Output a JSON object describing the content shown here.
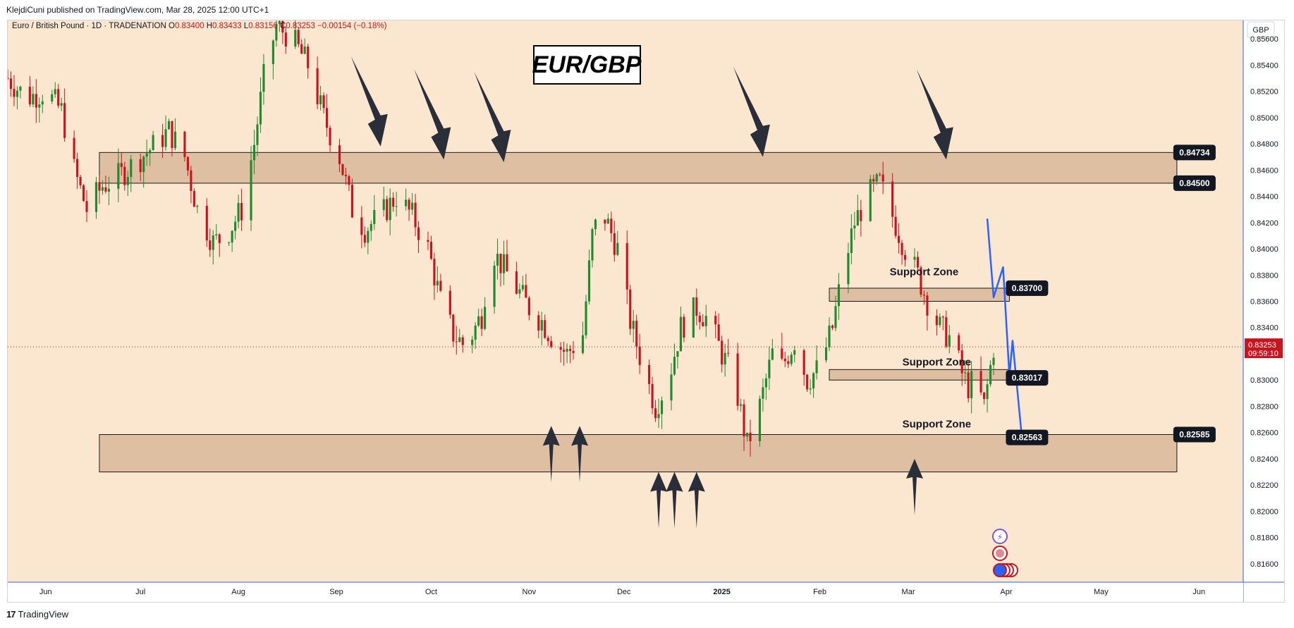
{
  "header": {
    "published": "KlejdiCuni published on TradingView.com, Mar 28, 2025 12:00 UTC+1"
  },
  "footer": {
    "brand": "TradingView",
    "logo_icon": "tradingview-logo-icon"
  },
  "colors": {
    "background": "#fbe6cf",
    "up": "#1f8a2e",
    "down": "#c9141f",
    "zone_fill": "#d8b799",
    "arrow": "#2a2e39",
    "projection": "#2962ff",
    "price_marker": "#c9141f"
  },
  "chart_data": {
    "type": "candlestick",
    "symbol_line": {
      "name": "Euro / British Pound · 1D · TRADENATION",
      "o_label": "O",
      "o": "0.83400",
      "h_label": "H",
      "h": "0.83433",
      "l_label": "L",
      "l": "0.83156",
      "c_label": "C",
      "c": "0.83253",
      "change": "−0.00154 (−0.18%)"
    },
    "title": "EUR/GBP",
    "currency": "GBP",
    "y_range": [
      0.8146,
      0.8574
    ],
    "y_ticks": [
      "0.85600",
      "0.85400",
      "0.85200",
      "0.85000",
      "0.84800",
      "0.84600",
      "0.84400",
      "0.84200",
      "0.84000",
      "0.83800",
      "0.83600",
      "0.83400",
      "0.83200",
      "0.83000",
      "0.82800",
      "0.82600",
      "0.82400",
      "0.82200",
      "0.82000",
      "0.81800",
      "0.81600"
    ],
    "x_range": [
      "2024-05-20",
      "2025-06-15"
    ],
    "x_ticks": [
      {
        "date": "2024-06-01",
        "label": "Jun"
      },
      {
        "date": "2024-07-01",
        "label": "Jul"
      },
      {
        "date": "2024-08-01",
        "label": "Aug"
      },
      {
        "date": "2024-09-01",
        "label": "Sep"
      },
      {
        "date": "2024-10-01",
        "label": "Oct"
      },
      {
        "date": "2024-11-01",
        "label": "Nov"
      },
      {
        "date": "2024-12-01",
        "label": "Dec"
      },
      {
        "date": "2025-01-01",
        "label": "2025"
      },
      {
        "date": "2025-02-01",
        "label": "Feb"
      },
      {
        "date": "2025-03-01",
        "label": "Mar"
      },
      {
        "date": "2025-04-01",
        "label": "Apr"
      },
      {
        "date": "2025-05-01",
        "label": "May"
      },
      {
        "date": "2025-06-01",
        "label": "Jun"
      }
    ],
    "current_price": {
      "value": 0.83253,
      "label": "0.83253",
      "countdown": "09:59:10"
    },
    "price_path": [
      [
        "2024-05-20",
        0.853
      ],
      [
        "2024-05-26",
        0.8515
      ],
      [
        "2024-06-01",
        0.852
      ],
      [
        "2024-06-06",
        0.8505
      ],
      [
        "2024-06-10",
        0.846
      ],
      [
        "2024-06-14",
        0.843
      ],
      [
        "2024-06-19",
        0.8448
      ],
      [
        "2024-06-24",
        0.8455
      ],
      [
        "2024-06-29",
        0.8465
      ],
      [
        "2024-07-05",
        0.8478
      ],
      [
        "2024-07-10",
        0.849
      ],
      [
        "2024-07-15",
        0.847
      ],
      [
        "2024-07-19",
        0.843
      ],
      [
        "2024-07-24",
        0.8405
      ],
      [
        "2024-07-28",
        0.841
      ],
      [
        "2024-08-02",
        0.843
      ],
      [
        "2024-08-06",
        0.848
      ],
      [
        "2024-08-09",
        0.853
      ],
      [
        "2024-08-13",
        0.857
      ],
      [
        "2024-08-18",
        0.856
      ],
      [
        "2024-08-23",
        0.854
      ],
      [
        "2024-08-28",
        0.85
      ],
      [
        "2024-09-02",
        0.847
      ],
      [
        "2024-09-06",
        0.843
      ],
      [
        "2024-09-10",
        0.8415
      ],
      [
        "2024-09-15",
        0.8425
      ],
      [
        "2024-09-20",
        0.844
      ],
      [
        "2024-09-25",
        0.8425
      ],
      [
        "2024-09-30",
        0.84
      ],
      [
        "2024-10-04",
        0.836
      ],
      [
        "2024-10-08",
        0.8335
      ],
      [
        "2024-10-12",
        0.8325
      ],
      [
        "2024-10-17",
        0.835
      ],
      [
        "2024-10-20",
        0.84
      ],
      [
        "2024-10-24",
        0.8385
      ],
      [
        "2024-10-28",
        0.837
      ],
      [
        "2024-11-01",
        0.8355
      ],
      [
        "2024-11-05",
        0.8345
      ],
      [
        "2024-11-09",
        0.833
      ],
      [
        "2024-11-13",
        0.832
      ],
      [
        "2024-11-18",
        0.8335
      ],
      [
        "2024-11-21",
        0.841
      ],
      [
        "2024-11-24",
        0.843
      ],
      [
        "2024-11-29",
        0.84
      ],
      [
        "2024-12-03",
        0.8345
      ],
      [
        "2024-12-07",
        0.831
      ],
      [
        "2024-12-11",
        0.828
      ],
      [
        "2024-12-15",
        0.83
      ],
      [
        "2024-12-19",
        0.834
      ],
      [
        "2024-12-24",
        0.8355
      ],
      [
        "2024-12-28",
        0.8345
      ],
      [
        "2025-01-01",
        0.832
      ],
      [
        "2025-01-05",
        0.83
      ],
      [
        "2025-01-09",
        0.825
      ],
      [
        "2025-01-13",
        0.828
      ],
      [
        "2025-01-17",
        0.832
      ],
      [
        "2025-01-20",
        0.831
      ],
      [
        "2025-01-24",
        0.833
      ],
      [
        "2025-01-28",
        0.83
      ],
      [
        "2025-02-01",
        0.831
      ],
      [
        "2025-02-05",
        0.834
      ],
      [
        "2025-02-08",
        0.838
      ],
      [
        "2025-02-12",
        0.842
      ],
      [
        "2025-02-16",
        0.844
      ],
      [
        "2025-02-20",
        0.845
      ],
      [
        "2025-02-24",
        0.8425
      ],
      [
        "2025-02-28",
        0.84
      ],
      [
        "2025-03-04",
        0.838
      ],
      [
        "2025-03-07",
        0.836
      ],
      [
        "2025-03-11",
        0.834
      ],
      [
        "2025-03-15",
        0.833
      ],
      [
        "2025-03-18",
        0.8305
      ],
      [
        "2025-03-20",
        0.8295
      ],
      [
        "2025-03-22",
        0.83
      ],
      [
        "2025-03-25",
        0.828
      ],
      [
        "2025-03-28",
        0.8325
      ]
    ],
    "zones": [
      {
        "from": "2024-06-18",
        "to": "2025-05-25",
        "low": 0.845,
        "high": 0.84734
      },
      {
        "from": "2024-06-18",
        "to": "2025-05-25",
        "low": 0.823,
        "high": 0.82585
      },
      {
        "from": "2025-02-04",
        "to": "2025-04-02",
        "low": 0.836,
        "high": 0.837
      },
      {
        "from": "2025-02-04",
        "to": "2025-04-02",
        "low": 0.83,
        "high": 0.8308
      }
    ],
    "annotations": [
      {
        "text": "Support Zone",
        "date": "2025-03-06",
        "price": 0.838
      },
      {
        "text": "Support Zone",
        "date": "2025-03-10",
        "price": 0.8311
      },
      {
        "text": "Support Zone",
        "date": "2025-03-10",
        "price": 0.8264
      }
    ],
    "price_labels": [
      {
        "label": "0.84734",
        "price": 0.84734,
        "date": "2025-05-25"
      },
      {
        "label": "0.84500",
        "price": 0.845,
        "date": "2025-05-25"
      },
      {
        "label": "0.83700",
        "price": 0.837,
        "date": "2025-04-02"
      },
      {
        "label": "0.83017",
        "price": 0.83017,
        "date": "2025-04-02"
      },
      {
        "label": "0.82585",
        "price": 0.82585,
        "date": "2025-05-25"
      },
      {
        "label": "0.82563",
        "price": 0.82563,
        "date": "2025-04-02"
      }
    ],
    "down_arrows": [
      {
        "date": "2024-09-15",
        "price": 0.8478
      },
      {
        "date": "2024-10-05",
        "price": 0.8468
      },
      {
        "date": "2024-10-24",
        "price": 0.8466
      },
      {
        "date": "2025-01-14",
        "price": 0.847
      },
      {
        "date": "2025-03-13",
        "price": 0.8468
      }
    ],
    "up_arrows": [
      {
        "date": "2024-11-08",
        "price": 0.8265
      },
      {
        "date": "2024-11-17",
        "price": 0.8265
      },
      {
        "date": "2024-12-12",
        "price": 0.823
      },
      {
        "date": "2024-12-17",
        "price": 0.823
      },
      {
        "date": "2024-12-24",
        "price": 0.823
      },
      {
        "date": "2025-03-03",
        "price": 0.824
      }
    ],
    "projection": [
      [
        "2025-03-26",
        0.8423
      ],
      [
        "2025-03-28",
        0.8363
      ],
      [
        "2025-03-31",
        0.8386
      ],
      [
        "2025-04-02",
        0.8303
      ],
      [
        "2025-04-03",
        0.833
      ],
      [
        "2025-04-06",
        0.8255
      ],
      [
        "2025-04-08",
        0.8261
      ]
    ]
  }
}
